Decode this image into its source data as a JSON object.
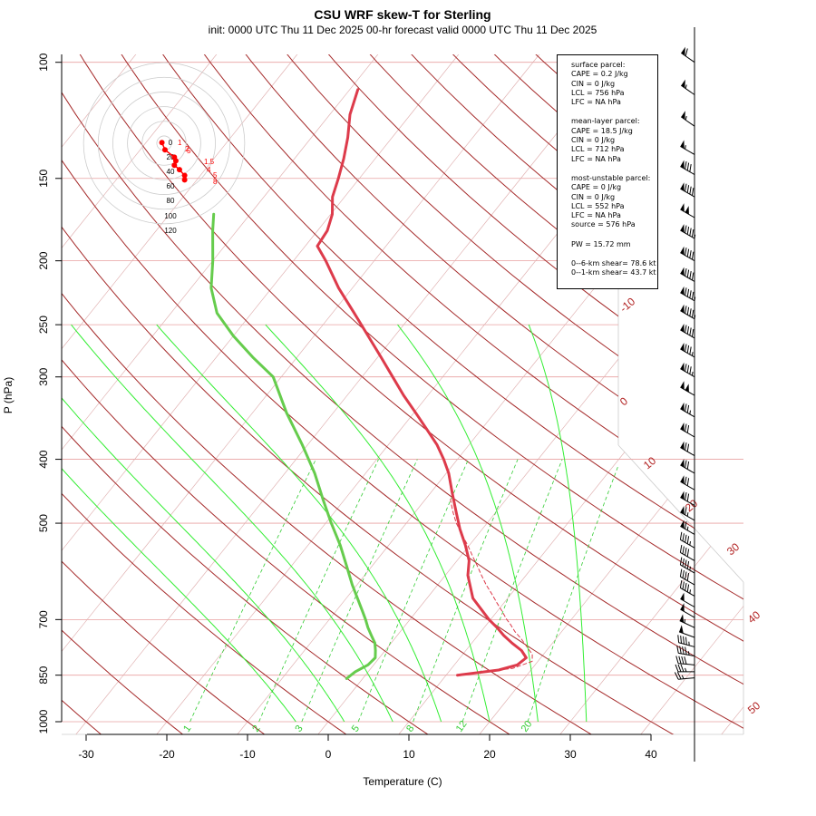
{
  "title": "CSU WRF skew-T for Sterling",
  "subtitle": "init: 0000 UTC Thu 11 Dec 2025    00-hr forecast valid 0000 UTC Thu 11 Dec 2025",
  "chart_data": {
    "type": "line",
    "xlabel": "Temperature (C)",
    "ylabel": "P (hPa)",
    "x_ticks": [
      "-30",
      "-20",
      "-10",
      "0",
      "10",
      "20",
      "30",
      "40"
    ],
    "p_ticks": [
      "100",
      "150",
      "200",
      "250",
      "300",
      "400",
      "500",
      "700",
      "850",
      "1000"
    ],
    "isotherm_labels": [
      "-10",
      "0",
      "10",
      "20",
      "30",
      "40",
      "50"
    ],
    "mixing_ratio_labels": [
      "1",
      "2",
      "3",
      "5",
      "8",
      "12",
      "20"
    ],
    "series": [
      {
        "name": "temperature",
        "color": "#dd3b4b",
        "points": [
          [
            850,
            11.4
          ],
          [
            835,
            16.0
          ],
          [
            820,
            17.8
          ],
          [
            800,
            18.2
          ],
          [
            780,
            16.9
          ],
          [
            760,
            15.0
          ],
          [
            740,
            13.2
          ],
          [
            720,
            11.6
          ],
          [
            700,
            9.8
          ],
          [
            680,
            8.2
          ],
          [
            650,
            5.7
          ],
          [
            600,
            2.8
          ],
          [
            570,
            1.5
          ],
          [
            540,
            -0.5
          ],
          [
            510,
            -2.8
          ],
          [
            480,
            -5.0
          ],
          [
            450,
            -7.3
          ],
          [
            420,
            -9.7
          ],
          [
            400,
            -11.7
          ],
          [
            380,
            -14.0
          ],
          [
            360,
            -16.8
          ],
          [
            340,
            -19.8
          ],
          [
            320,
            -23.0
          ],
          [
            300,
            -26.2
          ],
          [
            280,
            -29.6
          ],
          [
            260,
            -33.3
          ],
          [
            240,
            -37.3
          ],
          [
            220,
            -41.7
          ],
          [
            200,
            -46.0
          ],
          [
            190,
            -48.5
          ],
          [
            180,
            -48.8
          ],
          [
            170,
            -49.8
          ],
          [
            160,
            -51.5
          ],
          [
            150,
            -52.6
          ],
          [
            140,
            -53.9
          ],
          [
            130,
            -55.5
          ],
          [
            120,
            -57.5
          ],
          [
            110,
            -59.0
          ]
        ]
      },
      {
        "name": "dewpoint",
        "color": "#66cc4d",
        "points": [
          [
            860,
            -2.0
          ],
          [
            850,
            -1.8
          ],
          [
            840,
            -1.6
          ],
          [
            820,
            -0.7
          ],
          [
            800,
            -0.5
          ],
          [
            780,
            -1.2
          ],
          [
            760,
            -2.0
          ],
          [
            740,
            -3.2
          ],
          [
            720,
            -4.4
          ],
          [
            700,
            -5.5
          ],
          [
            680,
            -6.7
          ],
          [
            650,
            -8.6
          ],
          [
            620,
            -10.6
          ],
          [
            580,
            -13.2
          ],
          [
            540,
            -16.0
          ],
          [
            500,
            -19.3
          ],
          [
            460,
            -22.7
          ],
          [
            420,
            -26.3
          ],
          [
            380,
            -30.7
          ],
          [
            340,
            -35.8
          ],
          [
            300,
            -41.0
          ],
          [
            280,
            -45.5
          ],
          [
            260,
            -50.0
          ],
          [
            240,
            -54.3
          ],
          [
            220,
            -57.5
          ],
          [
            200,
            -60.0
          ],
          [
            180,
            -63.0
          ],
          [
            170,
            -64.5
          ]
        ]
      },
      {
        "name": "parcel",
        "color": "#dd3b4b",
        "points": [
          [
            850,
            11.8
          ],
          [
            830,
            17.6
          ],
          [
            810,
            19.3
          ],
          [
            790,
            18.6
          ],
          [
            770,
            17.2
          ],
          [
            750,
            15.8
          ],
          [
            730,
            14.2
          ],
          [
            710,
            12.8
          ],
          [
            700,
            12.0
          ],
          [
            680,
            10.6
          ],
          [
            660,
            9.1
          ],
          [
            640,
            7.6
          ],
          [
            620,
            6.0
          ],
          [
            600,
            4.5
          ],
          [
            580,
            3.0
          ],
          [
            560,
            1.4
          ],
          [
            540,
            -0.2
          ],
          [
            520,
            -2.0
          ],
          [
            500,
            -3.8
          ],
          [
            480,
            -5.4
          ],
          [
            460,
            -6.9
          ]
        ]
      }
    ],
    "hodograph": {
      "ring_labels": [
        "0",
        "20",
        "40",
        "60",
        "80",
        "100",
        "120"
      ],
      "points": [
        [
          -3,
          1
        ],
        [
          1.2,
          -9
        ],
        [
          14,
          -19
        ],
        [
          16,
          -24
        ],
        [
          14,
          -30
        ],
        [
          21,
          -36
        ],
        [
          28,
          -44
        ],
        [
          28,
          -50
        ]
      ],
      "height_labels": [
        "1",
        "2",
        "5",
        "1.5",
        "4",
        "5",
        "8"
      ]
    },
    "wind_barbs": [
      {
        "p": 100,
        "dir": 305,
        "spd": 60
      },
      {
        "p": 112,
        "dir": 305,
        "spd": 55
      },
      {
        "p": 125,
        "dir": 305,
        "spd": 55
      },
      {
        "p": 138,
        "dir": 300,
        "spd": 55
      },
      {
        "p": 148,
        "dir": 300,
        "spd": 80
      },
      {
        "p": 160,
        "dir": 300,
        "spd": 90
      },
      {
        "p": 172,
        "dir": 300,
        "spd": 100
      },
      {
        "p": 185,
        "dir": 300,
        "spd": 95
      },
      {
        "p": 200,
        "dir": 300,
        "spd": 90
      },
      {
        "p": 215,
        "dir": 300,
        "spd": 90
      },
      {
        "p": 230,
        "dir": 300,
        "spd": 95
      },
      {
        "p": 245,
        "dir": 300,
        "spd": 95
      },
      {
        "p": 262,
        "dir": 300,
        "spd": 90
      },
      {
        "p": 280,
        "dir": 300,
        "spd": 85
      },
      {
        "p": 300,
        "dir": 300,
        "spd": 85
      },
      {
        "p": 320,
        "dir": 300,
        "spd": 100
      },
      {
        "p": 345,
        "dir": 300,
        "spd": 75
      },
      {
        "p": 370,
        "dir": 300,
        "spd": 70
      },
      {
        "p": 395,
        "dir": 300,
        "spd": 70
      },
      {
        "p": 420,
        "dir": 300,
        "spd": 70
      },
      {
        "p": 445,
        "dir": 300,
        "spd": 70
      },
      {
        "p": 470,
        "dir": 300,
        "spd": 70
      },
      {
        "p": 495,
        "dir": 300,
        "spd": 65
      },
      {
        "p": 520,
        "dir": 300,
        "spd": 65
      },
      {
        "p": 545,
        "dir": 300,
        "spd": 45
      },
      {
        "p": 570,
        "dir": 300,
        "spd": 40
      },
      {
        "p": 595,
        "dir": 300,
        "spd": 45
      },
      {
        "p": 620,
        "dir": 300,
        "spd": 40
      },
      {
        "p": 645,
        "dir": 300,
        "spd": 45
      },
      {
        "p": 670,
        "dir": 300,
        "spd": 50
      },
      {
        "p": 695,
        "dir": 300,
        "spd": 50
      },
      {
        "p": 720,
        "dir": 295,
        "spd": 55
      },
      {
        "p": 745,
        "dir": 290,
        "spd": 50
      },
      {
        "p": 770,
        "dir": 285,
        "spd": 45
      },
      {
        "p": 795,
        "dir": 280,
        "spd": 45
      },
      {
        "p": 820,
        "dir": 275,
        "spd": 40
      },
      {
        "p": 840,
        "dir": 270,
        "spd": 35
      },
      {
        "p": 858,
        "dir": 265,
        "spd": 25
      }
    ],
    "info": {
      "surface": [
        "surface parcel:",
        "CAPE = 0.2 J/kg",
        "CIN = 0 J/kg",
        "LCL = 756 hPa",
        "LFC = NA hPa"
      ],
      "mean_layer": [
        "mean-layer parcel:",
        "CAPE = 18.5 J/kg",
        "CIN = 0 J/kg",
        "LCL = 712 hPa",
        "LFC = NA hPa"
      ],
      "most_unstable": [
        "most-unstable parcel:",
        "CAPE = 0 J/kg",
        "CIN = 0 J/kg",
        "LCL = 552 hPa",
        "LFC = NA hPa",
        "source = 576 hPa"
      ],
      "pw": [
        "PW =  15.72 mm"
      ],
      "shear": [
        "0--6-km shear= 78.6 kt",
        "0--1-km shear= 43.7 kt"
      ]
    }
  }
}
